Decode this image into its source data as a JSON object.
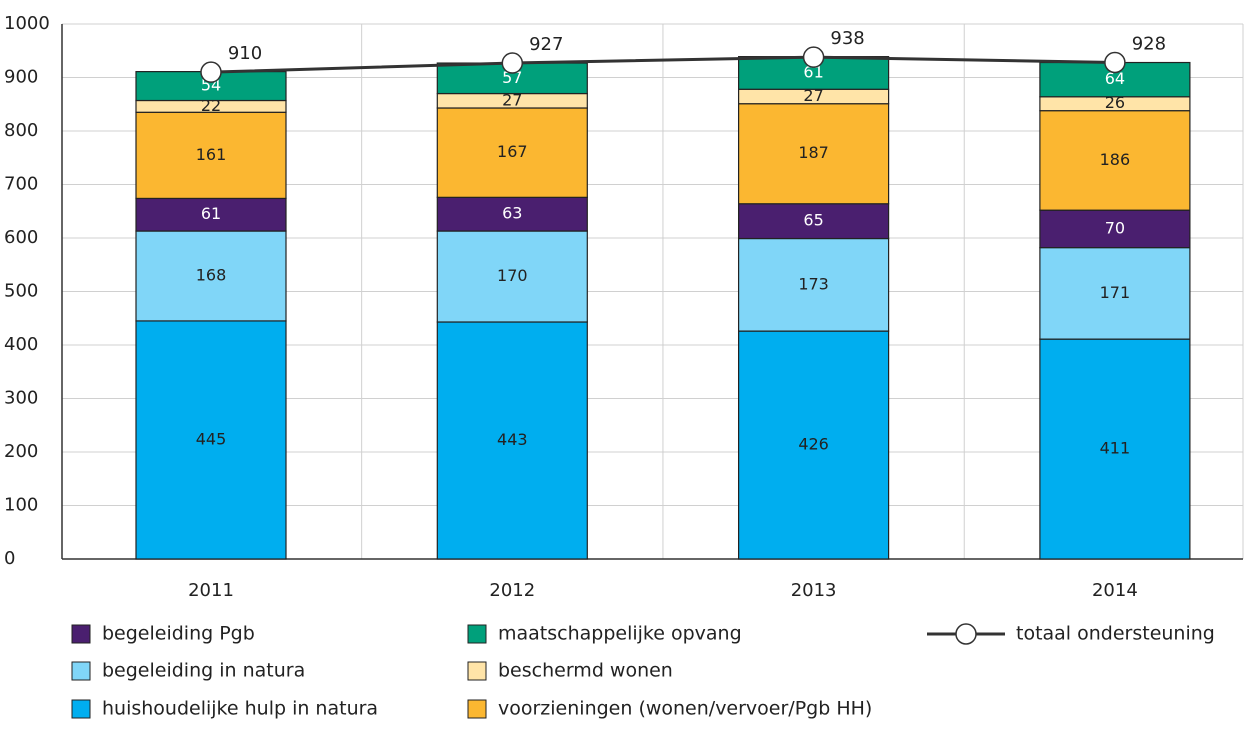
{
  "chart_data": {
    "type": "bar",
    "stacked": true,
    "categories": [
      "2011",
      "2012",
      "2013",
      "2014"
    ],
    "series": [
      {
        "name": "huishoudelijke hulp in natura",
        "color": "#00aeef",
        "values": [
          445,
          443,
          426,
          411
        ]
      },
      {
        "name": "begeleiding in natura",
        "color": "#80d6f8",
        "values": [
          168,
          170,
          173,
          171
        ]
      },
      {
        "name": "begeleiding Pgb",
        "color": "#4a1f6f",
        "values": [
          61,
          63,
          65,
          70
        ]
      },
      {
        "name": "voorzieningen (wonen/vervoer/Pgb HH)",
        "color": "#fbb731",
        "values": [
          161,
          167,
          187,
          186
        ]
      },
      {
        "name": "beschermd wonen",
        "color": "#ffe4a8",
        "values": [
          22,
          27,
          27,
          26
        ]
      },
      {
        "name": "maatschappelijke opvang",
        "color": "#00a07b",
        "values": [
          54,
          57,
          61,
          64
        ]
      }
    ],
    "line": {
      "name": "totaal ondersteuning",
      "type": "line",
      "color": "#333333",
      "values": [
        910,
        927,
        938,
        928
      ]
    },
    "ylim": [
      0,
      1000
    ],
    "yticks": [
      0,
      100,
      200,
      300,
      400,
      500,
      600,
      700,
      800,
      900,
      1000
    ],
    "grid": true
  }
}
